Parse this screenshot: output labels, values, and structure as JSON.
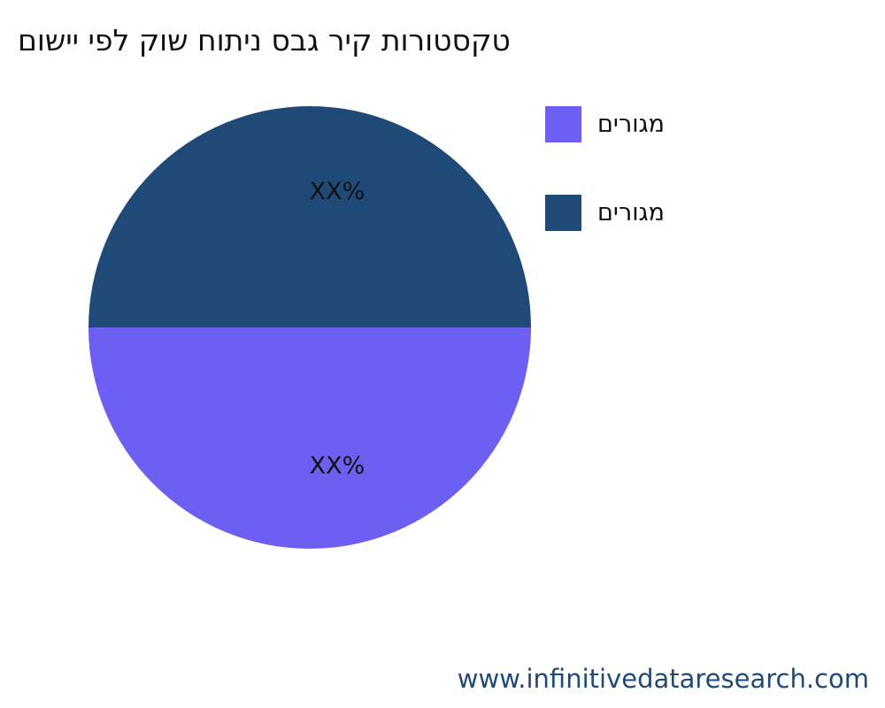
{
  "chart_data": {
    "type": "pie",
    "title": "םושיי יפל קוש חותינ סבג ריק תורוטסקט",
    "slices": [
      {
        "label": "םירוגמ",
        "value": 50,
        "display": "XX%",
        "color": "#6c5ff2"
      },
      {
        "label": "םירוגמ",
        "value": 50,
        "display": "XX%",
        "color": "#1f4a78"
      }
    ],
    "legend_position": "right"
  },
  "footer": "www.infinitivedataresearch.com"
}
